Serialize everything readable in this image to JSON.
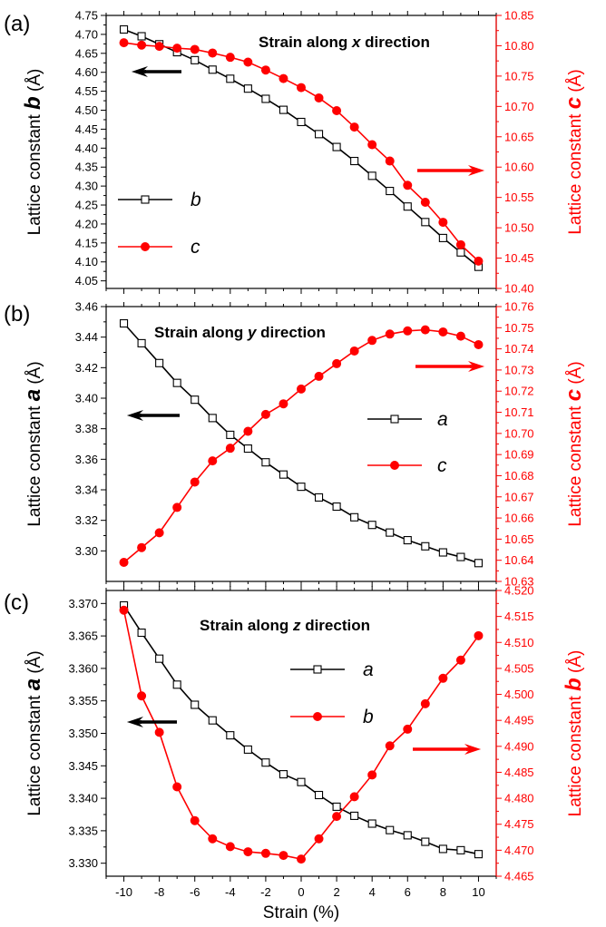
{
  "chart_data": [
    {
      "type": "line",
      "panel_label": "(a)",
      "title_parts": [
        {
          "text": "Strain along ",
          "italic": false
        },
        {
          "text": "x",
          "italic": true
        },
        {
          "text": " direction",
          "italic": false
        }
      ],
      "xlabel": "Strain (%)",
      "x": [
        -10,
        -9,
        -8,
        -7,
        -6,
        -5,
        -4,
        -3,
        -2,
        -1,
        0,
        1,
        2,
        3,
        4,
        5,
        6,
        7,
        8,
        9,
        10
      ],
      "xlim": [
        -11,
        11
      ],
      "xticks": [
        -10,
        -8,
        -6,
        -4,
        -2,
        0,
        2,
        4,
        6,
        8,
        10
      ],
      "xtick_labels": [
        "-10",
        "-8",
        "-6",
        "-4",
        "-2",
        "0",
        "2",
        "4",
        "6",
        "8",
        "10"
      ],
      "left_axis": {
        "label_prefix": "Lattice constant ",
        "label_var": "b",
        "label_unit": " (Å)",
        "ylim": [
          4.03,
          4.75
        ],
        "ticks": [
          4.05,
          4.1,
          4.15,
          4.2,
          4.25,
          4.3,
          4.35,
          4.4,
          4.45,
          4.5,
          4.55,
          4.6,
          4.65,
          4.7,
          4.75
        ],
        "tick_labels": [
          "4.05",
          "4.10",
          "4.15",
          "4.20",
          "4.25",
          "4.30",
          "4.35",
          "4.40",
          "4.45",
          "4.50",
          "4.55",
          "4.60",
          "4.65",
          "4.70",
          "4.75"
        ]
      },
      "right_axis": {
        "label_prefix": "Lattice constant ",
        "label_var": "c",
        "label_unit": " (Å)",
        "ylim": [
          10.4,
          10.85
        ],
        "ticks": [
          10.4,
          10.45,
          10.5,
          10.55,
          10.6,
          10.65,
          10.7,
          10.75,
          10.8,
          10.85
        ],
        "tick_labels": [
          "10.40",
          "10.45",
          "10.50",
          "10.55",
          "10.60",
          "10.65",
          "10.70",
          "10.75",
          "10.80",
          "10.85"
        ]
      },
      "series": [
        {
          "name": "b",
          "axis": "left",
          "marker": "open-square",
          "color": "#000000",
          "values": [
            4.713,
            4.695,
            4.674,
            4.653,
            4.632,
            4.607,
            4.583,
            4.557,
            4.53,
            4.501,
            4.469,
            4.437,
            4.403,
            4.366,
            4.327,
            4.287,
            4.246,
            4.205,
            4.163,
            4.125,
            4.087
          ]
        },
        {
          "name": "c",
          "axis": "right",
          "marker": "filled-circle",
          "color": "#ff0000",
          "values": [
            10.805,
            10.801,
            10.799,
            10.796,
            10.794,
            10.788,
            10.781,
            10.773,
            10.76,
            10.746,
            10.731,
            10.714,
            10.693,
            10.666,
            10.637,
            10.61,
            10.57,
            10.542,
            10.509,
            10.472,
            10.445
          ]
        }
      ],
      "legend_position": "left-middle"
    },
    {
      "type": "line",
      "panel_label": "(b)",
      "title_parts": [
        {
          "text": "Strain along ",
          "italic": false
        },
        {
          "text": "y",
          "italic": true
        },
        {
          "text": " direction",
          "italic": false
        }
      ],
      "xlabel": "Strain (%)",
      "x": [
        -10,
        -9,
        -8,
        -7,
        -6,
        -5,
        -4,
        -3,
        -2,
        -1,
        0,
        1,
        2,
        3,
        4,
        5,
        6,
        7,
        8,
        9,
        10
      ],
      "xlim": [
        -11,
        11
      ],
      "xticks": [
        -10,
        -8,
        -6,
        -4,
        -2,
        0,
        2,
        4,
        6,
        8,
        10
      ],
      "xtick_labels": [
        "-10",
        "-8",
        "-6",
        "-4",
        "-2",
        "0",
        "2",
        "4",
        "6",
        "8",
        "10"
      ],
      "left_axis": {
        "label_prefix": "Lattice constant ",
        "label_var": "a",
        "label_unit": " (Å)",
        "ylim": [
          3.28,
          3.46
        ],
        "ticks": [
          3.3,
          3.32,
          3.34,
          3.36,
          3.38,
          3.4,
          3.42,
          3.44,
          3.46
        ],
        "tick_labels": [
          "3.30",
          "3.32",
          "3.34",
          "3.36",
          "3.38",
          "3.40",
          "3.42",
          "3.44",
          "3.46"
        ]
      },
      "right_axis": {
        "label_prefix": "Lattice constant ",
        "label_var": "c",
        "label_unit": " (Å)",
        "ylim": [
          10.63,
          10.76
        ],
        "ticks": [
          10.63,
          10.64,
          10.65,
          10.66,
          10.67,
          10.68,
          10.69,
          10.7,
          10.71,
          10.72,
          10.73,
          10.74,
          10.75,
          10.76
        ],
        "tick_labels": [
          "10.63",
          "10.64",
          "10.65",
          "10.66",
          "10.67",
          "10.68",
          "10.69",
          "10.70",
          "10.71",
          "10.72",
          "10.73",
          "10.74",
          "10.75",
          "10.76"
        ]
      },
      "series": [
        {
          "name": "a",
          "axis": "left",
          "marker": "open-square",
          "color": "#000000",
          "values": [
            3.449,
            3.436,
            3.423,
            3.41,
            3.399,
            3.387,
            3.376,
            3.367,
            3.358,
            3.35,
            3.342,
            3.335,
            3.329,
            3.322,
            3.317,
            3.312,
            3.307,
            3.303,
            3.299,
            3.296,
            3.292
          ]
        },
        {
          "name": "c",
          "axis": "right",
          "marker": "filled-circle",
          "color": "#ff0000",
          "values": [
            10.639,
            10.646,
            10.653,
            10.665,
            10.677,
            10.687,
            10.693,
            10.701,
            10.709,
            10.714,
            10.721,
            10.727,
            10.733,
            10.739,
            10.744,
            10.747,
            10.7485,
            10.749,
            10.748,
            10.746,
            10.742
          ]
        }
      ],
      "legend_position": "right-middle"
    },
    {
      "type": "line",
      "panel_label": "(c)",
      "title_parts": [
        {
          "text": "Strain along ",
          "italic": false
        },
        {
          "text": "z",
          "italic": true
        },
        {
          "text": " direction",
          "italic": false
        }
      ],
      "xlabel": "Strain (%)",
      "x": [
        -10,
        -9,
        -8,
        -7,
        -6,
        -5,
        -4,
        -3,
        -2,
        -1,
        0,
        1,
        2,
        3,
        4,
        5,
        6,
        7,
        8,
        9,
        10
      ],
      "xlim": [
        -11,
        11
      ],
      "xticks": [
        -10,
        -8,
        -6,
        -4,
        -2,
        0,
        2,
        4,
        6,
        8,
        10
      ],
      "xtick_labels": [
        "-10",
        "-8",
        "-6",
        "-4",
        "-2",
        "0",
        "2",
        "4",
        "6",
        "8",
        "10"
      ],
      "left_axis": {
        "label_prefix": "Lattice constant ",
        "label_var": "a",
        "label_unit": " (Å)",
        "ylim": [
          3.328,
          3.372
        ],
        "ticks": [
          3.33,
          3.335,
          3.34,
          3.345,
          3.35,
          3.355,
          3.36,
          3.365,
          3.37
        ],
        "tick_labels": [
          "3.330",
          "3.335",
          "3.340",
          "3.345",
          "3.350",
          "3.355",
          "3.360",
          "3.365",
          "3.370"
        ]
      },
      "right_axis": {
        "label_prefix": "Lattice constant ",
        "label_var": "b",
        "label_unit": " (Å)",
        "ylim": [
          4.465,
          4.52
        ],
        "ticks": [
          4.465,
          4.47,
          4.475,
          4.48,
          4.485,
          4.49,
          4.495,
          4.5,
          4.505,
          4.51,
          4.515,
          4.52
        ],
        "tick_labels": [
          "4.465",
          "4.470",
          "4.475",
          "4.480",
          "4.485",
          "4.490",
          "4.495",
          "4.500",
          "4.505",
          "4.510",
          "4.515",
          "4.520"
        ]
      },
      "series": [
        {
          "name": "a",
          "axis": "left",
          "marker": "open-square",
          "color": "#000000",
          "values": [
            3.3697,
            3.3655,
            3.3615,
            3.3575,
            3.3544,
            3.352,
            3.3497,
            3.3475,
            3.3455,
            3.3437,
            3.3425,
            3.3405,
            3.3387,
            3.3373,
            3.3361,
            3.3351,
            3.3343,
            3.3333,
            3.3322,
            3.332,
            3.3314
          ]
        },
        {
          "name": "b",
          "axis": "right",
          "marker": "filled-circle",
          "color": "#ff0000",
          "values": [
            4.5162,
            4.4997,
            4.4927,
            4.4822,
            4.4757,
            4.4722,
            4.4707,
            4.4697,
            4.4694,
            4.469,
            4.4683,
            4.4722,
            4.4765,
            4.4803,
            4.4845,
            4.4901,
            4.4933,
            4.4982,
            4.5031,
            4.5066,
            4.5113
          ]
        }
      ],
      "legend_position": "right-upper"
    }
  ],
  "colors": {
    "left_series": "#000000",
    "right_series": "#ff0000",
    "arrow_left": "#000000",
    "arrow_right": "#ff0000"
  }
}
